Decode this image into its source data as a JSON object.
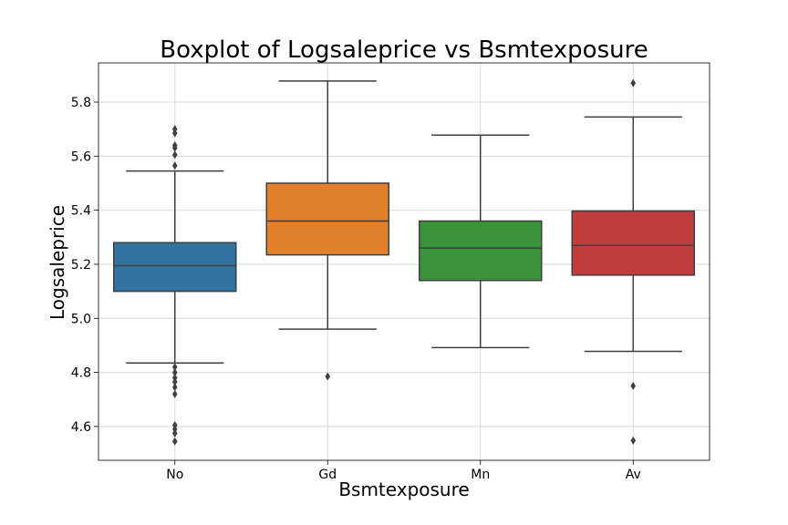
{
  "chart_data": {
    "type": "box",
    "title": "Boxplot of Logsaleprice vs Bsmtexposure",
    "xlabel": "Bsmtexposure",
    "ylabel": "Logsaleprice",
    "ylim": [
      4.475,
      5.945
    ],
    "yticks": [
      4.6,
      4.8,
      5.0,
      5.2,
      5.4,
      5.6,
      5.8
    ],
    "grid": true,
    "categories": [
      "No",
      "Gd",
      "Mn",
      "Av"
    ],
    "boxes": [
      {
        "category": "No",
        "color": "#3274a1",
        "whisker_low": 4.835,
        "q1": 5.1,
        "median": 5.195,
        "q3": 5.28,
        "whisker_high": 5.545,
        "outliers": [
          5.7,
          5.685,
          5.64,
          5.63,
          5.605,
          5.565,
          4.82,
          4.8,
          4.78,
          4.765,
          4.745,
          4.72,
          4.605,
          4.59,
          4.575,
          4.545
        ]
      },
      {
        "category": "Gd",
        "color": "#e1812c",
        "whisker_low": 4.96,
        "q1": 5.235,
        "median": 5.36,
        "q3": 5.5,
        "whisker_high": 5.878,
        "outliers": [
          4.785
        ]
      },
      {
        "category": "Mn",
        "color": "#3a923a",
        "whisker_low": 4.892,
        "q1": 5.14,
        "median": 5.26,
        "q3": 5.36,
        "whisker_high": 5.678,
        "outliers": []
      },
      {
        "category": "Av",
        "color": "#c03d3e",
        "whisker_low": 4.878,
        "q1": 5.16,
        "median": 5.27,
        "q3": 5.397,
        "whisker_high": 5.745,
        "outliers": [
          5.87,
          4.75,
          4.548
        ]
      }
    ]
  }
}
